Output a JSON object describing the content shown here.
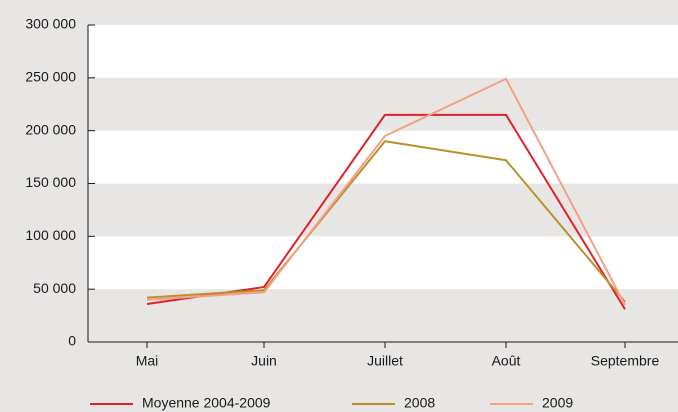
{
  "chart_data": {
    "type": "line",
    "categories": [
      "Mai",
      "Juin",
      "Juillet",
      "Août",
      "Septembre"
    ],
    "series": [
      {
        "name": "Moyenne 2004-2009",
        "color": "#e3202a",
        "values": [
          36000,
          52000,
          215000,
          215000,
          31000
        ]
      },
      {
        "name": "2008",
        "color": "#b8912a",
        "values": [
          42000,
          49000,
          190000,
          172000,
          38000
        ]
      },
      {
        "name": "2009",
        "color": "#f4a085",
        "values": [
          40000,
          47000,
          195000,
          249000,
          35000
        ]
      }
    ],
    "ylim": [
      0,
      300000
    ],
    "yticks": [
      0,
      {
        "value": 50000,
        "label": "50 000"
      },
      {
        "value": 100000,
        "label": "100 000"
      },
      {
        "value": 150000,
        "label": "150 000"
      },
      {
        "value": 200000,
        "label": "200 000"
      },
      {
        "value": 250000,
        "label": "250 000"
      },
      {
        "value": 300000,
        "label": "300 000"
      }
    ],
    "grid": true,
    "legend": "bottom"
  }
}
